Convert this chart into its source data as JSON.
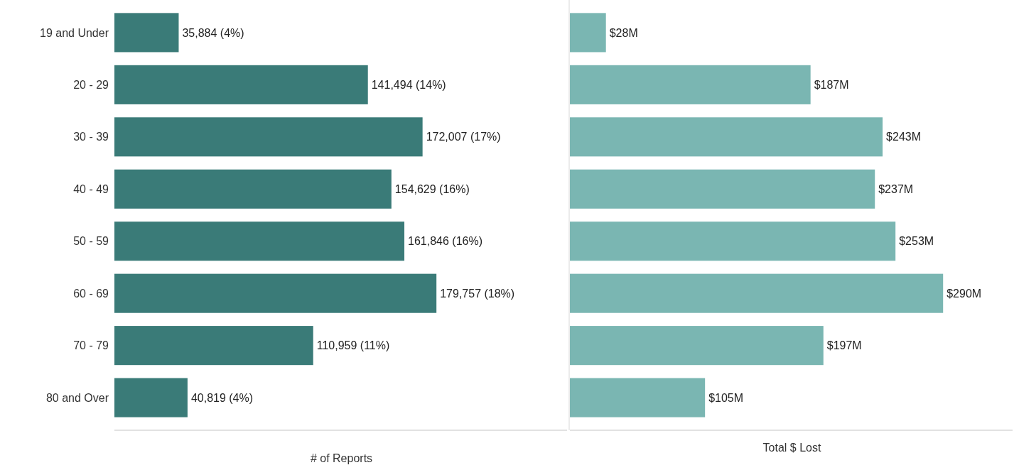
{
  "chart_data": [
    {
      "type": "bar",
      "orientation": "horizontal",
      "xlabel": "# of Reports",
      "categories": [
        "19 and Under",
        "20 - 29",
        "30 - 39",
        "40 - 49",
        "50 - 59",
        "60 - 69",
        "70 - 79",
        "80 and Over"
      ],
      "values": [
        35884,
        141494,
        172007,
        154629,
        161846,
        179757,
        110959,
        40819
      ],
      "value_labels": [
        "35,884 (4%)",
        "141,494 (14%)",
        "172,007 (17%)",
        "154,629 (16%)",
        "161,846 (16%)",
        "179,757 (18%)",
        "110,959 (11%)",
        "40,819 (4%)"
      ],
      "color": "#3a7b78",
      "tick_labels": "y"
    },
    {
      "type": "bar",
      "orientation": "horizontal",
      "xlabel": "Total $ Lost",
      "values": [
        28,
        187,
        243,
        237,
        253,
        290,
        197,
        105
      ],
      "value_labels": [
        "$28M",
        "$187M",
        "$243M",
        "$237M",
        "$253M",
        "$290M",
        "$197M",
        "$105M"
      ],
      "color": "#7ab6b2",
      "tick_labels": false
    }
  ]
}
